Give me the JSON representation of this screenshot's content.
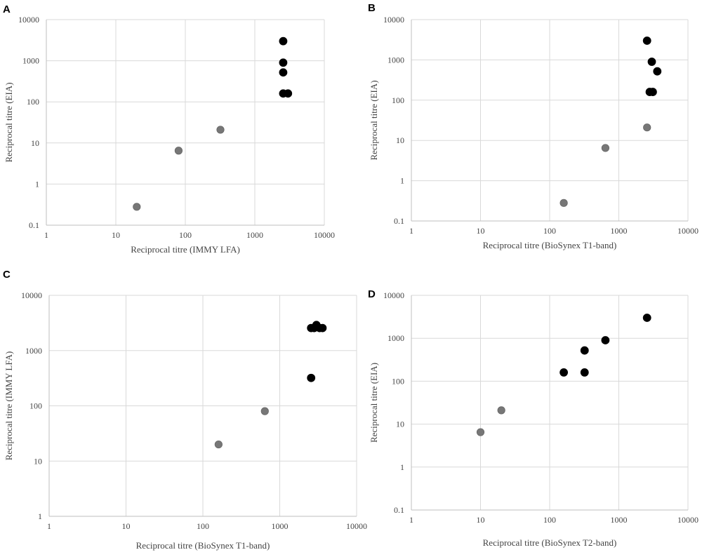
{
  "chart_data": [
    {
      "type": "scatter",
      "panel": "A",
      "xlabel": "Reciprocal titre (IMMY LFA)",
      "ylabel": "Reciprocal titre (EIA)",
      "xscale": "log",
      "yscale": "log",
      "xlim": [
        1,
        10000
      ],
      "ylim": [
        0.1,
        10000
      ],
      "xticks": [
        "1",
        "10",
        "100",
        "1000",
        "10000"
      ],
      "yticks": [
        "0.1",
        "1",
        "10",
        "100",
        "1000",
        "10000"
      ],
      "grid": true,
      "series": [
        {
          "name": "grey",
          "color": "#777777",
          "points": [
            [
              20,
              0.28
            ],
            [
              80,
              6.5
            ],
            [
              320,
              21
            ]
          ]
        },
        {
          "name": "black",
          "color": "#000000",
          "points": [
            [
              2560,
              3000
            ],
            [
              2560,
              900
            ],
            [
              2560,
              520
            ],
            [
              2560,
              160
            ],
            [
              3000,
              160
            ]
          ]
        }
      ]
    },
    {
      "type": "scatter",
      "panel": "B",
      "xlabel": "Reciprocal titre (BioSynex T1-band)",
      "ylabel": "Reciprocal titre (EIA)",
      "xscale": "log",
      "yscale": "log",
      "xlim": [
        1,
        10000
      ],
      "ylim": [
        0.1,
        10000
      ],
      "xticks": [
        "1",
        "10",
        "100",
        "1000",
        "10000"
      ],
      "yticks": [
        "0.1",
        "1",
        "10",
        "100",
        "1000",
        "10000"
      ],
      "grid": true,
      "series": [
        {
          "name": "grey",
          "color": "#777777",
          "points": [
            [
              160,
              0.28
            ],
            [
              640,
              6.5
            ],
            [
              2560,
              21
            ]
          ]
        },
        {
          "name": "black",
          "color": "#000000",
          "points": [
            [
              2560,
              3000
            ],
            [
              3000,
              900
            ],
            [
              3600,
              520
            ],
            [
              2800,
              160
            ],
            [
              3100,
              160
            ]
          ]
        }
      ]
    },
    {
      "type": "scatter",
      "panel": "C",
      "xlabel": "Reciprocal titre (BioSynex T1-band)",
      "ylabel": "Reciprocal titre (IMMY LFA)",
      "xscale": "log",
      "yscale": "log",
      "xlim": [
        1,
        10000
      ],
      "ylim": [
        1,
        10000
      ],
      "xticks": [
        "1",
        "10",
        "100",
        "1000",
        "10000"
      ],
      "yticks": [
        "1",
        "10",
        "100",
        "1000",
        "10000"
      ],
      "grid": true,
      "series": [
        {
          "name": "grey",
          "color": "#777777",
          "points": [
            [
              160,
              20
            ],
            [
              640,
              80
            ]
          ]
        },
        {
          "name": "black",
          "color": "#000000",
          "points": [
            [
              2560,
              320
            ],
            [
              2560,
              2560
            ],
            [
              2800,
              2560
            ],
            [
              3000,
              2900
            ],
            [
              3300,
              2560
            ],
            [
              3600,
              2560
            ]
          ]
        }
      ]
    },
    {
      "type": "scatter",
      "panel": "D",
      "xlabel": "Reciprocal titre (BioSynex T2-band)",
      "ylabel": "Reciprocal titre (EIA)",
      "xscale": "log",
      "yscale": "log",
      "xlim": [
        1,
        10000
      ],
      "ylim": [
        0.1,
        10000
      ],
      "xticks": [
        "1",
        "10",
        "100",
        "1000",
        "10000"
      ],
      "yticks": [
        "0.1",
        "1",
        "10",
        "100",
        "1000",
        "10000"
      ],
      "grid": true,
      "series": [
        {
          "name": "grey",
          "color": "#777777",
          "points": [
            [
              10,
              6.5
            ],
            [
              20,
              21
            ]
          ]
        },
        {
          "name": "black",
          "color": "#000000",
          "points": [
            [
              160,
              160
            ],
            [
              320,
              160
            ],
            [
              320,
              520
            ],
            [
              640,
              900
            ],
            [
              2560,
              3000
            ]
          ]
        }
      ]
    }
  ]
}
